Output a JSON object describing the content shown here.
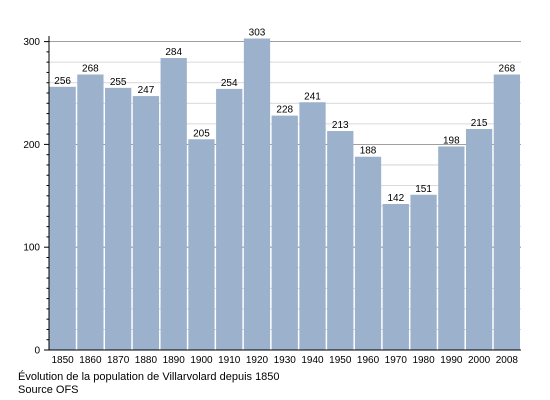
{
  "chart_data": {
    "type": "bar",
    "categories": [
      "1850",
      "1860",
      "1870",
      "1880",
      "1890",
      "1900",
      "1910",
      "1920",
      "1930",
      "1940",
      "1950",
      "1960",
      "1970",
      "1980",
      "1990",
      "2000",
      "2008"
    ],
    "values": [
      256,
      268,
      255,
      247,
      284,
      205,
      254,
      303,
      228,
      241,
      213,
      188,
      142,
      151,
      198,
      215,
      268
    ],
    "ylim": [
      0,
      310
    ],
    "yticks": [
      0,
      100,
      200,
      300
    ],
    "grid": true,
    "bar_color": "#9cb1cb",
    "grid_color": "#cccccc",
    "caption": "Évolution de la population de Villarvolard depuis 1850",
    "source": "Source OFS"
  }
}
